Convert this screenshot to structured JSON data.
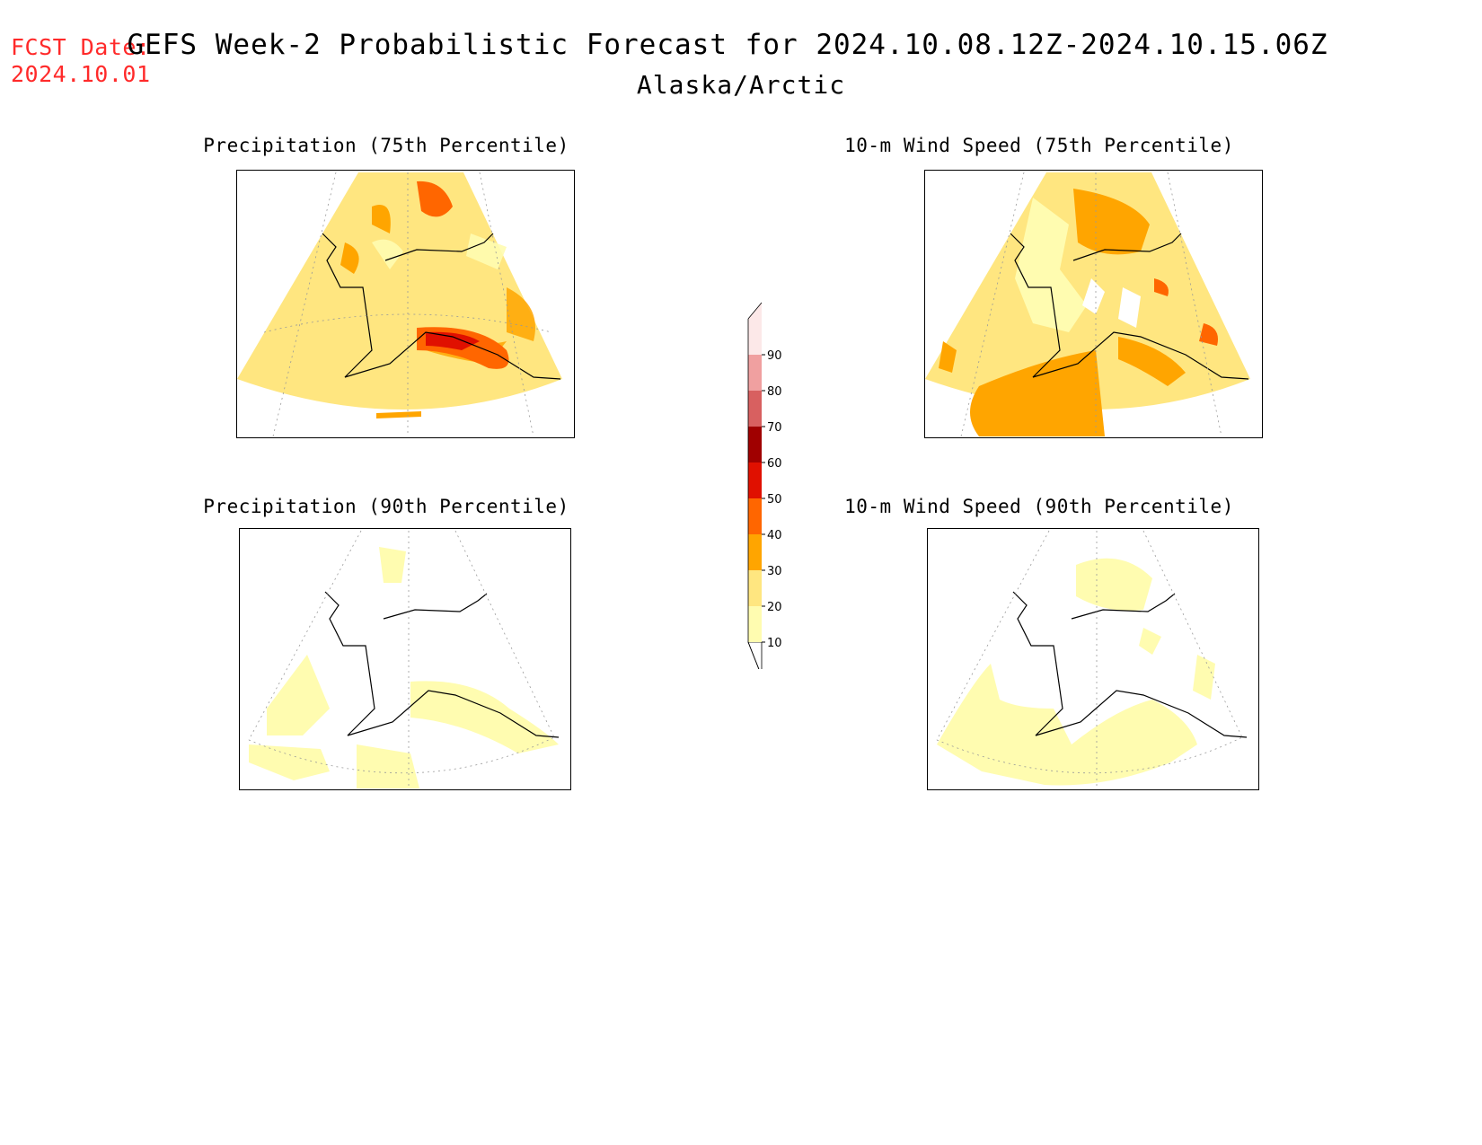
{
  "header": {
    "fcst_label": "FCST Date:",
    "fcst_date": "2024.10.01",
    "title": "GEFS Week-2 Probabilistic Forecast for 2024.10.08.12Z-2024.10.15.06Z",
    "subtitle": "Alaska/Arctic"
  },
  "panels": {
    "precip75": {
      "title": "Precipitation (75th Percentile)"
    },
    "wind75": {
      "title": "10-m Wind Speed (75th Percentile)"
    },
    "precip90": {
      "title": "Precipitation (90th Percentile)"
    },
    "wind90": {
      "title": "10-m Wind Speed (90th Percentile)"
    }
  },
  "legend": {
    "levels": [
      "10",
      "20",
      "30",
      "40",
      "50",
      "60",
      "70",
      "80",
      "90"
    ],
    "colors": [
      "#fffcb0",
      "#ffe680",
      "#ffa500",
      "#ff6600",
      "#e01000",
      "#a00000",
      "#d86060",
      "#f0a0a0",
      "#fce8e8"
    ]
  }
}
